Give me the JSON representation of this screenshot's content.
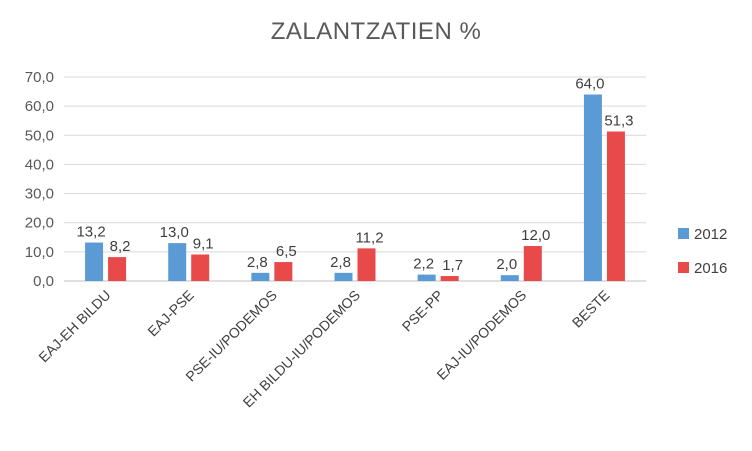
{
  "chart_data": {
    "type": "bar",
    "title": "ZALANTZATIEN %",
    "categories": [
      "EAJ-EH BILDU",
      "EAJ-PSE",
      "PSE-IU/PODEMOS",
      "EH BILDU-IU/PODEMOS",
      "PSE-PP",
      "EAJ-IU/PODEMOS",
      "BESTE"
    ],
    "series": [
      {
        "name": "2012",
        "color": "#5B9BD5",
        "values": [
          13.2,
          13.0,
          2.8,
          2.8,
          2.2,
          2.0,
          64.0
        ],
        "labels": [
          "13,2",
          "13,0",
          "2,8",
          "2,8",
          "2,2",
          "2,0",
          "64,0"
        ]
      },
      {
        "name": "2016",
        "color": "#E84A4A",
        "values": [
          8.2,
          9.1,
          6.5,
          11.2,
          1.7,
          12.0,
          51.3
        ],
        "labels": [
          "8,2",
          "9,1",
          "6,5",
          "11,2",
          "1,7",
          "12,0",
          "51,3"
        ]
      }
    ],
    "y_ticks": [
      "0,0",
      "10,0",
      "20,0",
      "30,0",
      "40,0",
      "50,0",
      "60,0",
      "70,0"
    ],
    "ylim": [
      0,
      70
    ],
    "grid": true,
    "legend_position": "right"
  }
}
